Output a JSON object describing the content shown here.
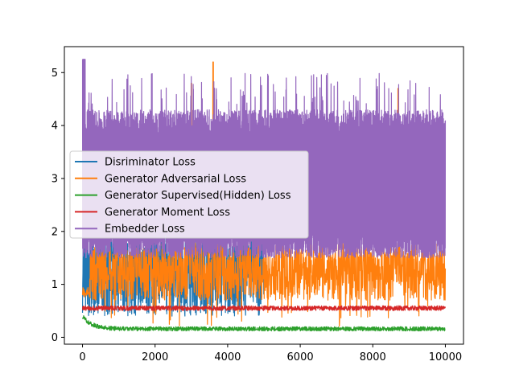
{
  "chart_data": {
    "type": "line",
    "title": "",
    "xlabel": "",
    "ylabel": "",
    "xlim": [
      -500,
      10500
    ],
    "ylim": [
      -0.13,
      5.49
    ],
    "xticks": [
      0,
      2000,
      4000,
      6000,
      8000,
      10000
    ],
    "yticks": [
      0,
      1,
      2,
      3,
      4,
      5
    ],
    "grid": false,
    "legend_position": "center-left",
    "series": [
      {
        "name": "Disriminator Loss",
        "color": "#1f77b4",
        "x_range": [
          0,
          5000
        ],
        "summary": {
          "typical_low": 0.3,
          "typical_high": 2.2,
          "min": 0.2,
          "max": 2.6
        }
      },
      {
        "name": "Generator Adversarial Loss",
        "color": "#ff7f0e",
        "x_range": [
          0,
          10000
        ],
        "summary": {
          "typical_low": 0.6,
          "typical_high": 2.0,
          "min": 0.2,
          "max": 5.2
        },
        "spikes": [
          {
            "x": 3000,
            "y": 4.8
          },
          {
            "x": 3600,
            "y": 5.2
          },
          {
            "x": 8700,
            "y": 4.7
          }
        ]
      },
      {
        "name": "Generator Supervised(Hidden) Loss",
        "color": "#2ca02c",
        "x_range": [
          0,
          10000
        ],
        "summary": {
          "start": 0.4,
          "typical": 0.16,
          "min": 0.1,
          "max": 0.42
        }
      },
      {
        "name": "Generator Moment Loss",
        "color": "#d62728",
        "x_range": [
          0,
          10000
        ],
        "summary": {
          "typical": 0.55,
          "min": 0.48,
          "max": 0.62
        }
      },
      {
        "name": "Embedder Loss",
        "color": "#9467bd",
        "x_range": [
          0,
          10000
        ],
        "summary": {
          "typical_low": 1.5,
          "typical_high": 4.3,
          "min": 1.3,
          "max": 5.25
        }
      }
    ]
  }
}
